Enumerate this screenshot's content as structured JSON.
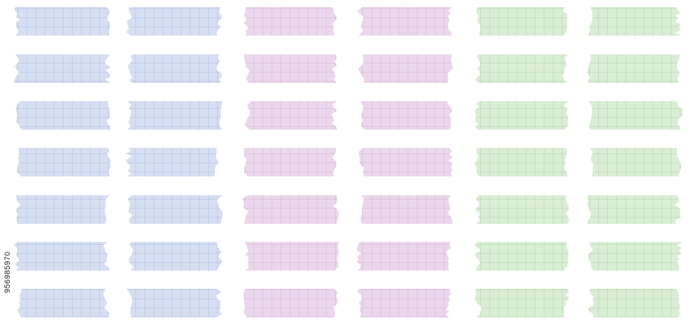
{
  "watermark_id": "956985970"
}
